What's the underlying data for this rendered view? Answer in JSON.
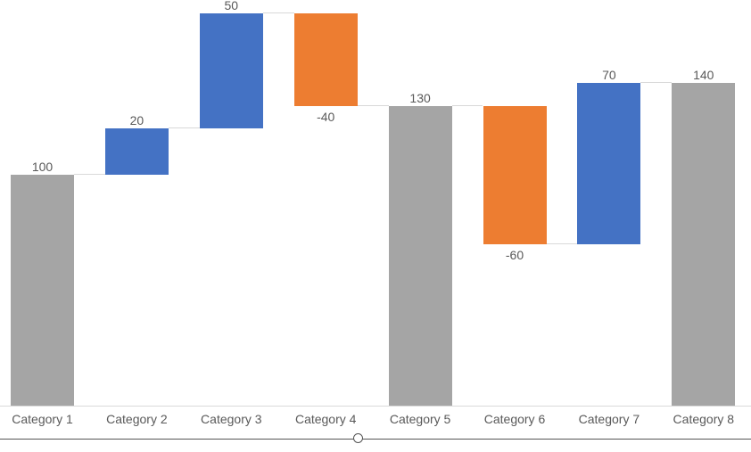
{
  "chart_data": {
    "type": "bar",
    "subtype": "waterfall",
    "title": "",
    "categories": [
      "Category 1",
      "Category 2",
      "Category 3",
      "Category 4",
      "Category 5",
      "Category 6",
      "Category 7",
      "Category 8"
    ],
    "points": [
      {
        "category": "Category 1",
        "value": 100,
        "kind": "total",
        "label": "100"
      },
      {
        "category": "Category 2",
        "value": 20,
        "kind": "increase",
        "label": "20"
      },
      {
        "category": "Category 3",
        "value": 50,
        "kind": "increase",
        "label": "50"
      },
      {
        "category": "Category 4",
        "value": -40,
        "kind": "decrease",
        "label": "-40"
      },
      {
        "category": "Category 5",
        "value": 130,
        "kind": "total",
        "label": "130"
      },
      {
        "category": "Category 6",
        "value": -60,
        "kind": "decrease",
        "label": "-60"
      },
      {
        "category": "Category 7",
        "value": 70,
        "kind": "increase",
        "label": "70"
      },
      {
        "category": "Category 8",
        "value": 140,
        "kind": "total",
        "label": "140"
      }
    ],
    "cumulative": [
      100,
      120,
      170,
      130,
      130,
      70,
      140,
      140
    ],
    "ylim": [
      0,
      170
    ],
    "xlabel": "",
    "ylabel": "",
    "gridlines": false,
    "legend": "none",
    "y_axis_visible": false,
    "data_label_position": "outside-end",
    "colors": {
      "increase": "#4472C4",
      "decrease": "#ED7D31",
      "total": "#A5A5A5",
      "connector": "#D9D9D9",
      "axis_line": "#D9D9D9",
      "label_text": "#595959",
      "selection_border": "#555555"
    }
  },
  "chart_frame": {
    "selection_handle": "bottom-center-resize-handle"
  }
}
